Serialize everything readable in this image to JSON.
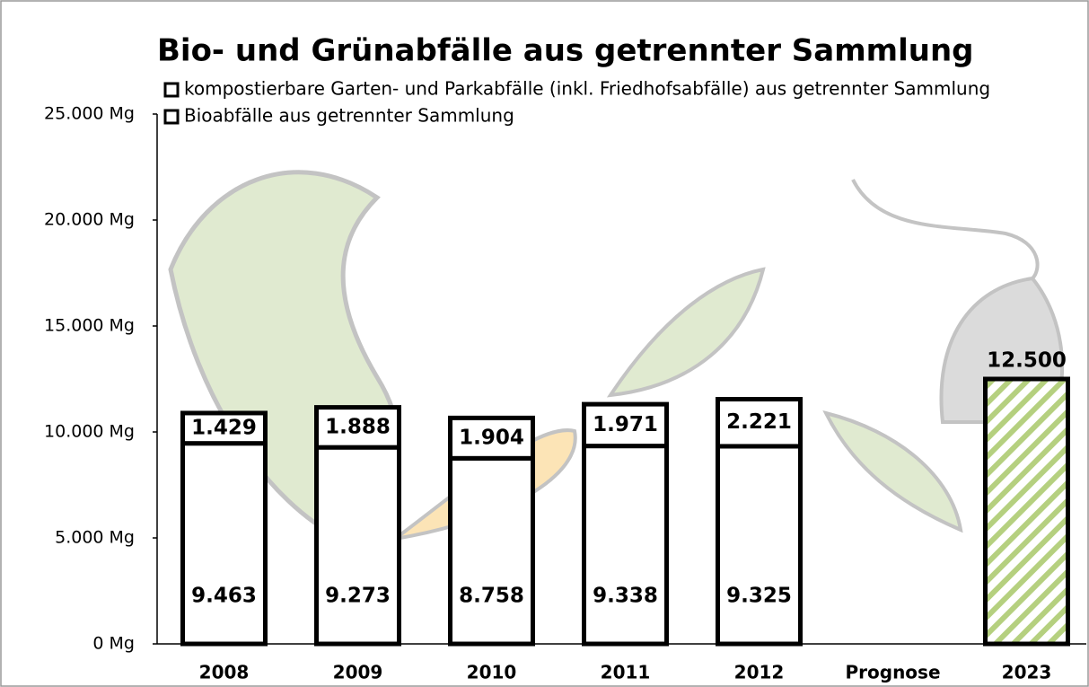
{
  "chart_data": {
    "type": "stacked_bar",
    "title": "Bio- und Grünabfälle aus getrennter Sammlung",
    "categories": [
      "2008",
      "2009",
      "2010",
      "2011",
      "2012",
      "Prognose",
      "2023"
    ],
    "series": [
      {
        "name": "Bioabfälle aus getrennter Sammlung",
        "color": "#ffffff",
        "values": [
          9463,
          9273,
          8758,
          9338,
          9325,
          null,
          null
        ],
        "value_labels": [
          "9.463",
          "9.273",
          "8.758",
          "9.338",
          "9.325",
          null,
          null
        ]
      },
      {
        "name": "kompostierbare Garten- und Parkabfälle (inkl. Friedhofsabfälle) aus getrennter Sammlung",
        "color": "#ffffff",
        "values": [
          1429,
          1888,
          1904,
          1971,
          2221,
          null,
          null
        ],
        "value_labels": [
          "1.429",
          "1.888",
          "1.904",
          "1.971",
          "2.221",
          null,
          null
        ]
      },
      {
        "color": "#b5d07f",
        "pattern": "hatch",
        "values": [
          null,
          null,
          null,
          null,
          null,
          null,
          12500
        ],
        "value_labels": [
          null,
          null,
          null,
          null,
          null,
          null,
          "12.500"
        ]
      }
    ],
    "ylim": [
      0,
      25000
    ],
    "yticks": [
      {
        "value": 0,
        "label": "0 Mg"
      },
      {
        "value": 5000,
        "label": "5.000 Mg"
      },
      {
        "value": 10000,
        "label": "10.000 Mg"
      },
      {
        "value": 15000,
        "label": "15.000 Mg"
      },
      {
        "value": 20000,
        "label": "20.000 Mg"
      },
      {
        "value": 25000,
        "label": "25.000 Mg"
      }
    ],
    "grid": false
  }
}
